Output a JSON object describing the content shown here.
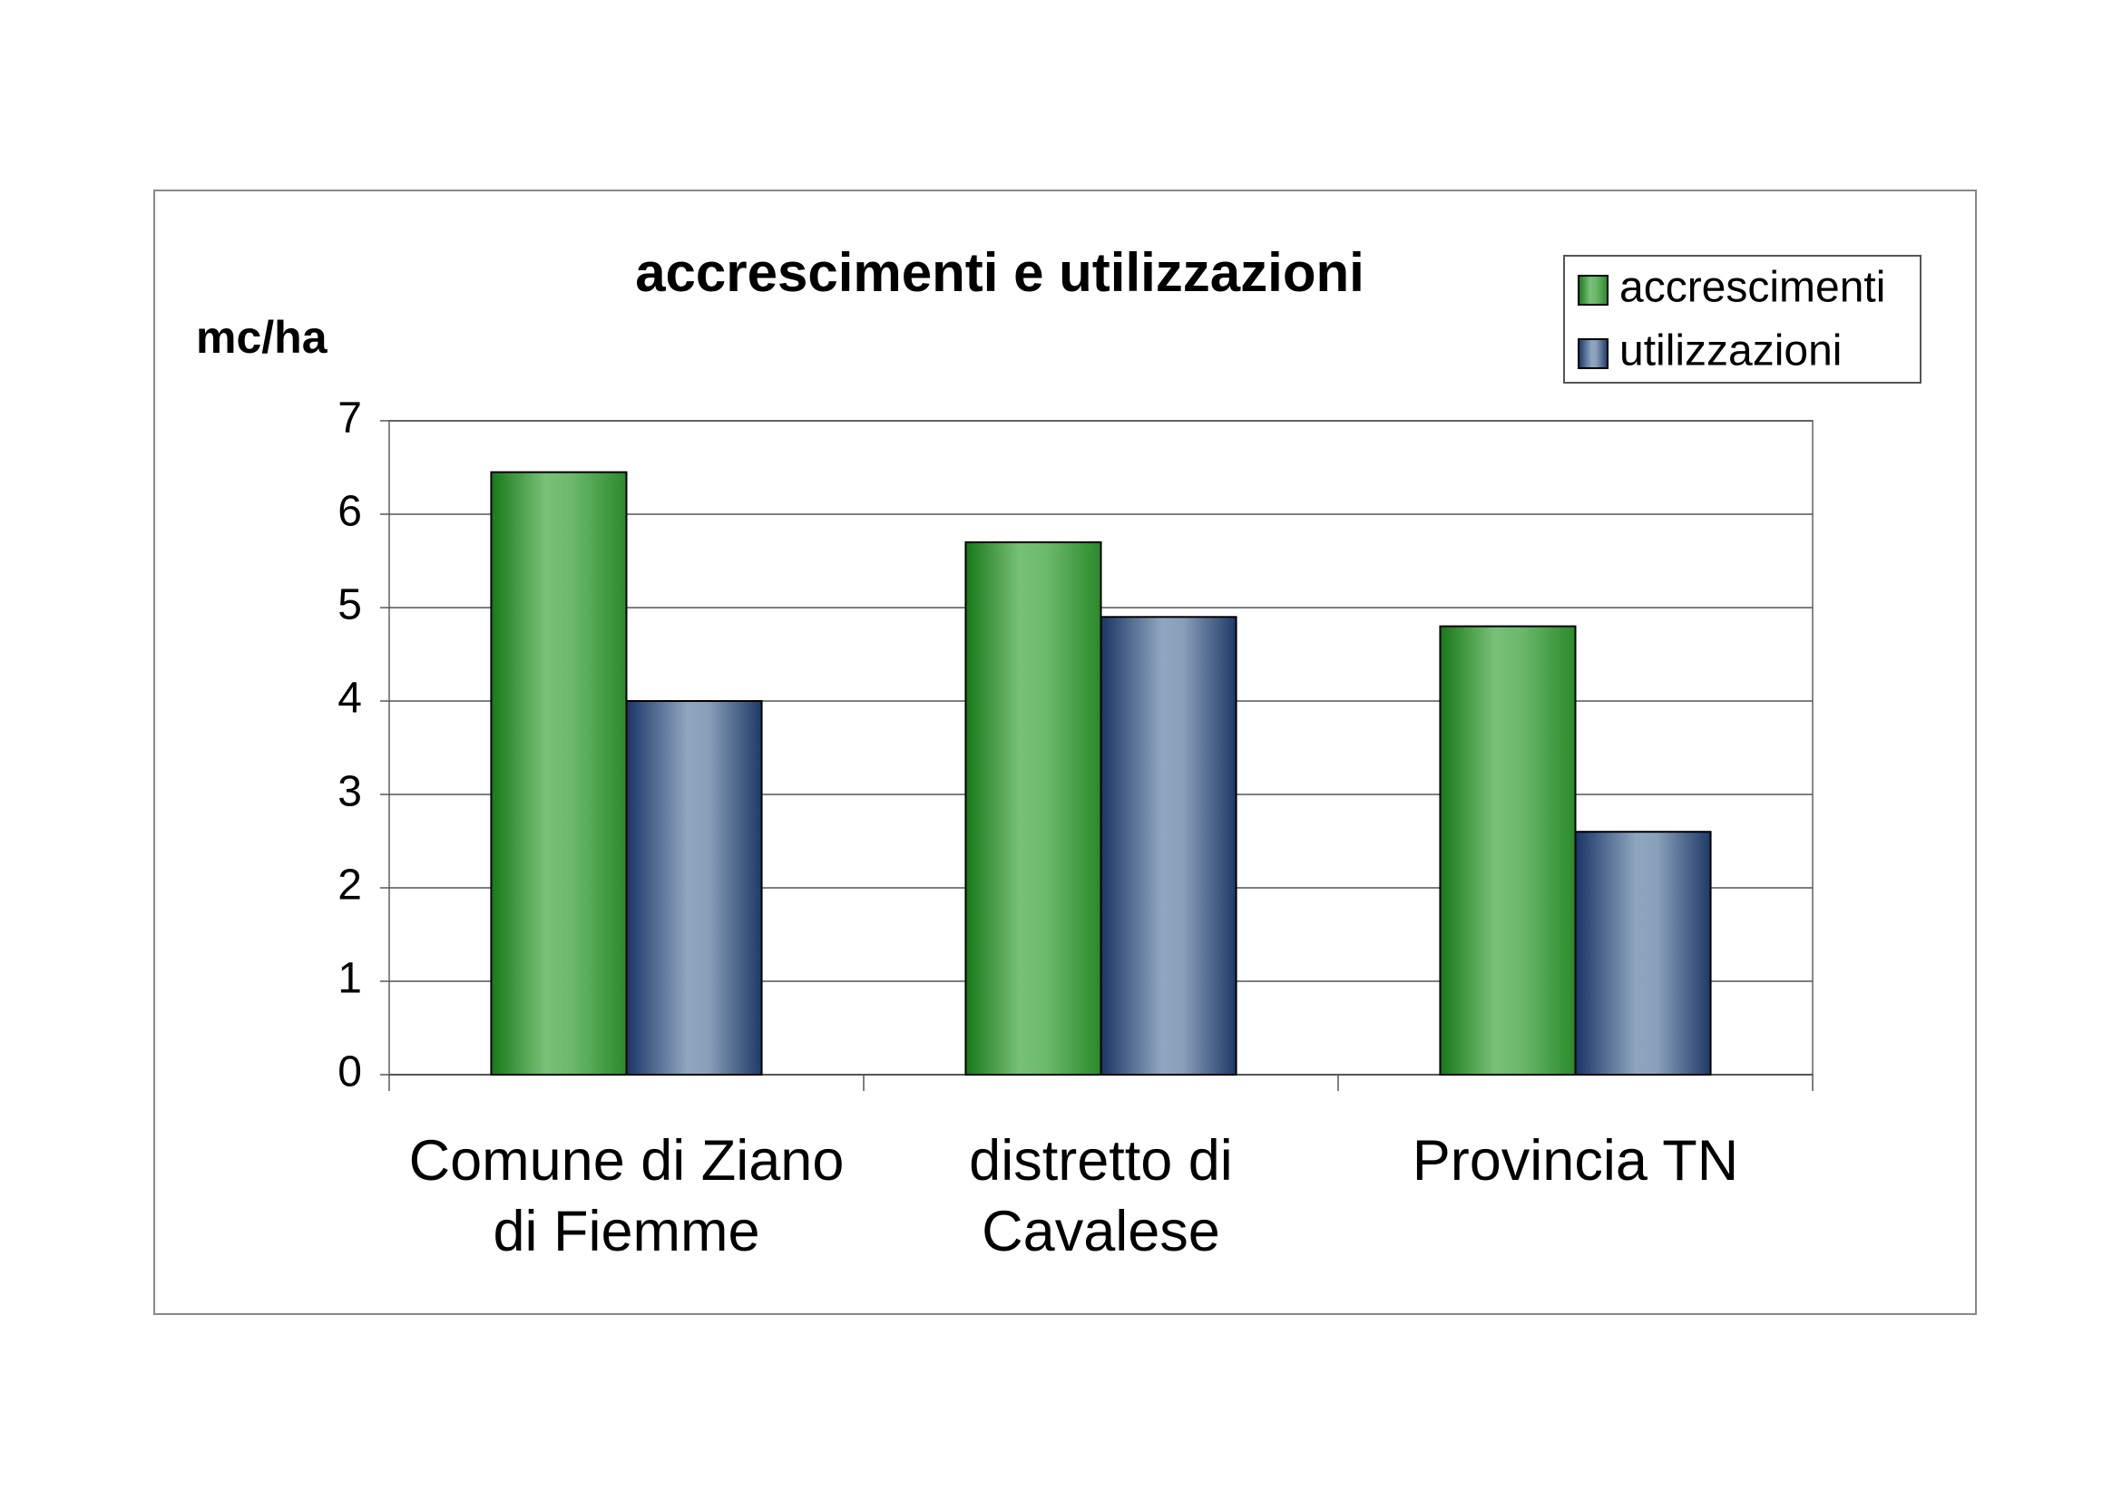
{
  "chart_data": {
    "type": "bar",
    "title": "accrescimenti e utilizzazioni",
    "y_label": "mc/ha",
    "categories": [
      "Comune di Ziano di Fiemme",
      "distretto di Cavalese",
      "Provincia TN"
    ],
    "series": [
      {
        "name": "accrescimenti",
        "color": "#2e8b2e",
        "values": [
          6.45,
          5.7,
          4.8
        ]
      },
      {
        "name": "utilizzazioni",
        "color": "#3a5680",
        "values": [
          4.0,
          4.9,
          2.6
        ]
      }
    ],
    "ylim": [
      0,
      7
    ],
    "yticks": [
      0,
      1,
      2,
      3,
      4,
      5,
      6,
      7
    ],
    "grid": true,
    "legend": "top-right"
  }
}
